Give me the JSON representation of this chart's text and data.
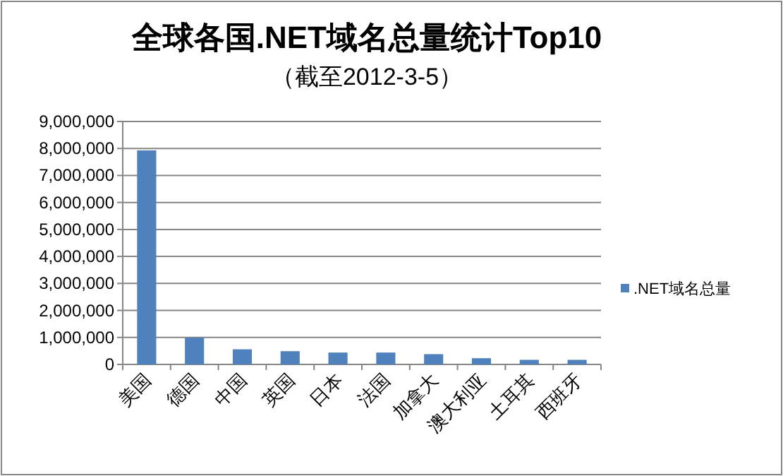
{
  "chart_data": {
    "type": "bar",
    "title": "全球各国.NET域名总量统计Top10",
    "subtitle": "（截至2012-3-5）",
    "categories": [
      "美国",
      "德国",
      "中国",
      "英国",
      "日本",
      "法国",
      "加拿大",
      "澳大利亚",
      "土耳其",
      "西班牙"
    ],
    "series": [
      {
        "name": ".NET域名总量",
        "color": "#4f81bd",
        "values": [
          7930000,
          990000,
          560000,
          490000,
          440000,
          440000,
          380000,
          230000,
          170000,
          170000
        ]
      }
    ],
    "ylim": [
      0,
      9000000
    ],
    "yticks": [
      {
        "value": 0,
        "label": "0"
      },
      {
        "value": 1000000,
        "label": "1,000,000"
      },
      {
        "value": 2000000,
        "label": "2,000,000"
      },
      {
        "value": 3000000,
        "label": "3,000,000"
      },
      {
        "value": 4000000,
        "label": "4,000,000"
      },
      {
        "value": 5000000,
        "label": "5,000,000"
      },
      {
        "value": 6000000,
        "label": "6,000,000"
      },
      {
        "value": 7000000,
        "label": "7,000,000"
      },
      {
        "value": 8000000,
        "label": "8,000,000"
      },
      {
        "value": 9000000,
        "label": "9,000,000"
      }
    ],
    "grid": "y",
    "legend": "right"
  }
}
